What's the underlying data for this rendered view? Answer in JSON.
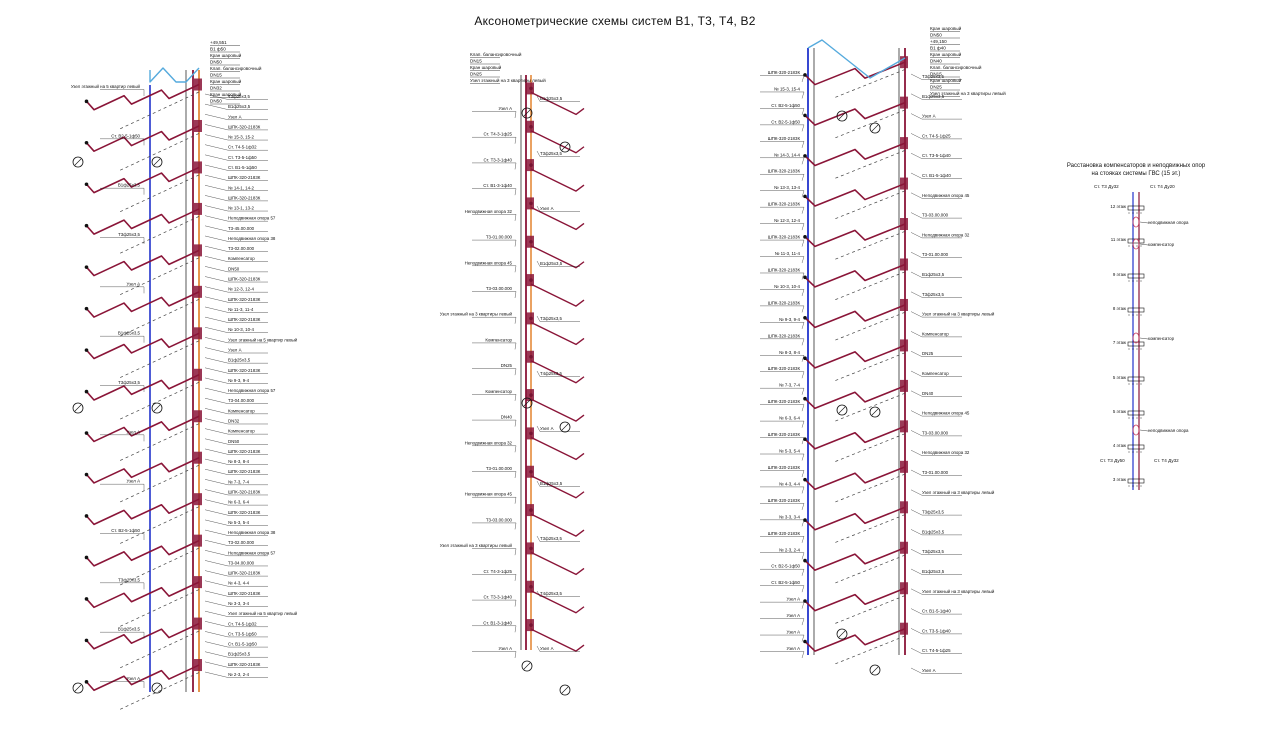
{
  "title": "Аксонометрические схемы систем В1, Т3, Т4, В2",
  "legend_panel": {
    "title": "Расстановка компенсаторов и неподвижных опор на стояках системы ГВС (15 эт.)",
    "top_left": "Ст. Т3 Ду32",
    "top_right": "Ст. Т4 Ду20",
    "bottom_left": "Ст. Т3 Ду50",
    "bottom_right": "Ст. Т4 Ду32",
    "floors": [
      "12 этаж",
      "11 этаж",
      "9 этаж",
      "8 этаж",
      "7 этаж",
      "5 этаж",
      "5 этаж",
      "4 этаж",
      "3 этаж"
    ],
    "notes": [
      "неподвижная опора",
      "компенсатор",
      "компенсатор",
      "неподвижная опора"
    ]
  },
  "schemes": [
    {
      "id": "scheme-1",
      "top_labels": [
        "+49,551",
        "В1 ф50",
        "Кран шаровый",
        "DN50",
        "Клап. балансировочный",
        "DN15",
        "Кран шаровый",
        "DN32",
        "Кран шаровый",
        "DN50"
      ],
      "left_labels": [
        "Узел этажный на 5 квартир левый",
        "Ст. В2-5-1ф50",
        "В1ф25х3,5",
        "Т3ф25х3,5",
        "Узел А",
        "В1ф25х3,5",
        "Т3ф25х3,5",
        "Узел А",
        "Узел А",
        "Ст. В2-5-1ф50",
        "Т3ф25х3,5",
        "В1ф25х3,5",
        "Узел А"
      ],
      "right_labels": [
        "Т3ф25х3,5",
        "В1ф25х3,5",
        "Узел А",
        "ШПК-320-2183К",
        "№ 15-3, 15-2",
        "Ст. Т4-5-1ф32",
        "Ст. Т3-5-1ф50",
        "Ст. В1-5-1ф50",
        "ШПК-320-2183К",
        "№ 14-1, 14-2",
        "ШПК-320-2183К",
        "№ 13-1, 13-2",
        "Неподвижная опора 57",
        "Т3-45.00.000",
        "Неподвижная опора 38",
        "Т3-02.00.000",
        "Компенсатор",
        "DN50",
        "ШПК-320-2183К",
        "№ 12-3, 12-4",
        "ШПК-320-2183К",
        "№ 11-3, 11-4",
        "ШПК-320-2183К",
        "№ 10-3, 10-4",
        "Узел этажный на 5 квартир левый",
        "Узел А",
        "В1ф25х3,5",
        "ШПК-320-2183К",
        "№ 9-3, 9-4",
        "Неподвижная опора 57",
        "Т3-04.00.000",
        "Компенсатор",
        "DN32",
        "Компенсатор",
        "DN50",
        "ШПК-320-2183К",
        "№ 8-3, 8-4",
        "ШПК-320-2183К",
        "№ 7-3, 7-4",
        "ШПК-320-2183К",
        "№ 6-3, 6-4",
        "ШПК-320-2183К",
        "№ 5-3, 5-4",
        "Неподвижная опора 38",
        "Т3-02.00.000",
        "Неподвижная опора 57",
        "Т3-04.00.000",
        "ШПК-320-2183К",
        "№ 4-3, 4-4",
        "ШПК-320-2183К",
        "№ 3-3, 3-4",
        "Узел этажный на 5 квартир левый",
        "Ст. Т4-5-1ф32",
        "Ст. Т3-5-1ф50",
        "Ст. В1-5-1ф50",
        "В1ф25х3,5",
        "ШПК-320-2183К",
        "№ 2-3, 2-4"
      ]
    },
    {
      "id": "scheme-2",
      "top_labels": [
        "Клап. балансировочный",
        "DN15",
        "Кран шаровый",
        "DN25",
        "Узел этажный на 3 квартиры левый"
      ],
      "left_labels": [
        "Узел А",
        "Ст. Т4-3-1ф25",
        "Ст. Т3-3-1ф40",
        "Ст. В1-3-1ф40",
        "Неподвижная опора 32",
        "Т3-01.00.000",
        "Неподвижная опора 45",
        "Т3-03.00.000",
        "Узел этажный на 3 квартиры левый",
        "Компенсатор",
        "DN25",
        "Компенсатор",
        "DN40",
        "Неподвижная опора 32",
        "Т3-01.00.000",
        "Неподвижная опора 45",
        "Т3-03.00.000",
        "Узел этажный на 3 квартиры левый",
        "Ст. Т4-3-1ф25",
        "Ст. Т3-3-1ф40",
        "Ст. В1-3-1ф40",
        "Узел А"
      ],
      "right_labels": [
        "В1ф25х3,5",
        "Т3ф25х3,5",
        "Узел А",
        "В1ф25х3,5",
        "Т3ф25х3,5",
        "Т4ф25х3,5",
        "Узел А",
        "В1ф25х3,5",
        "Т3ф25х3,5",
        "Т4ф25х3,5",
        "Узел А"
      ]
    },
    {
      "id": "scheme-3",
      "top_labels": [
        "Кран шаровый",
        "DN50",
        "+49,150",
        "В1 ф40",
        "Кран шаровый",
        "DN40",
        "Клап. балансировочный",
        "DN15",
        "Кран шаровый",
        "DN25",
        "Узел этажный на 3 квартиры левый"
      ],
      "left_labels": [
        "ШПК-320-2183К",
        "№ 15-3, 15-4",
        "Ст. В2-5-1ф50",
        "Ст. В2-5-1ф50",
        "ШПК-320-2183К",
        "№ 14-3, 14-4",
        "ШПК-320-2183К",
        "№ 13-3, 13-4",
        "ШПК-320-2183К",
        "№ 12-3, 12-4",
        "ШПК-320-2183К",
        "№ 11-3, 11-4",
        "ШПК-320-2183К",
        "№ 10-3, 10-4",
        "ШПК-320-2183К",
        "№ 9-3, 9-4",
        "ШПК-320-2183К",
        "№ 8-3, 8-4",
        "ШПК-320-2183К",
        "№ 7-3, 7-4",
        "ШПК-320-2183К",
        "№ 6-3, 6-4",
        "ШПК-320-2183К",
        "№ 5-3, 5-4",
        "ШПК-320-2183К",
        "№ 4-3, 4-4",
        "ШПК-320-2183К",
        "№ 3-3, 3-4",
        "ШПК-320-2183К",
        "№ 2-3, 2-4",
        "Ст. В2-5-1ф50",
        "Ст. В2-5-1ф50",
        "Узел А",
        "Узел А",
        "Узел А",
        "Узел А"
      ],
      "right_labels": [
        "Т3ф25х3,5",
        "В1ф25х3,5",
        "Узел А",
        "Ст. Т4-5-1ф25",
        "Ст. Т3-5-1ф40",
        "Ст. В1-5-1ф40",
        "Неподвижная опора 45",
        "Т3-03.00.000",
        "Неподвижная опора 32",
        "Т3-01.00.000",
        "В1ф25х3,5",
        "Т3ф25х3,5",
        "Узел этажный на 3 квартиры левый",
        "Компенсатор",
        "DN25",
        "Компенсатор",
        "DN40",
        "Неподвижная опора 45",
        "Т3-03.00.000",
        "Неподвижная опора 32",
        "Т3-01.00.000",
        "Узел этажный на 3 квартиры левый",
        "Т3ф25х3,5",
        "В1ф25х3,5",
        "Т3ф25х3,5",
        "В1ф25х3,5",
        "Узел этажный на 3 квартиры левый",
        "Ст. В1-5-1ф40",
        "Ст. Т3-5-1ф40",
        "Ст. Т4-5-1ф25",
        "Узел А"
      ]
    }
  ]
}
